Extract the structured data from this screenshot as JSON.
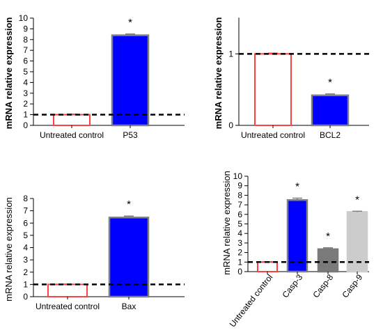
{
  "colors": {
    "control_edge": "#ff4040",
    "control_fill": "#ffffff",
    "blue": "#0000ff",
    "blue_edge": "#808080",
    "dark_gray": "#7a7a7a",
    "light_gray": "#cccccc",
    "error_bar": "#808080"
  },
  "chart_data": [
    {
      "type": "bar",
      "ylabel": "mRNA relative expression",
      "ylabel_bold": true,
      "categories": [
        "Untreated control",
        "P53"
      ],
      "values": [
        1.0,
        8.4
      ],
      "errors": [
        0.05,
        0.12
      ],
      "significance": [
        "",
        "*"
      ],
      "bar_colors": [
        "control",
        "blue"
      ],
      "yticks": [
        0,
        1,
        2,
        3,
        4,
        5,
        6,
        7,
        8,
        9,
        10
      ],
      "ylim": [
        0,
        10
      ],
      "reference_line": 1,
      "rotate_categories": false
    },
    {
      "type": "bar",
      "ylabel": "mRNA relative expression",
      "ylabel_bold": true,
      "categories": [
        "Untreated control",
        "BCL2"
      ],
      "values": [
        1.0,
        0.42
      ],
      "errors": [
        0.01,
        0.02
      ],
      "significance": [
        "",
        "*"
      ],
      "bar_colors": [
        "control",
        "blue"
      ],
      "yticks": [
        0,
        1
      ],
      "ylim": [
        0,
        1.5
      ],
      "reference_line": 1,
      "rotate_categories": false
    },
    {
      "type": "bar",
      "ylabel": "mRNA relative expression",
      "ylabel_bold": false,
      "categories": [
        "Untreated control",
        "Bax"
      ],
      "values": [
        1.0,
        6.45
      ],
      "errors": [
        0.03,
        0.12
      ],
      "significance": [
        "",
        "*"
      ],
      "bar_colors": [
        "control",
        "blue"
      ],
      "yticks": [
        0,
        1,
        2,
        3,
        4,
        5,
        6,
        7,
        8
      ],
      "ylim": [
        0,
        8
      ],
      "reference_line": 1,
      "rotate_categories": false
    },
    {
      "type": "bar",
      "ylabel": "mRNA relative expression",
      "ylabel_bold": false,
      "categories": [
        "Untreated control",
        "Casp-3",
        "Casp-8",
        "Casp-9"
      ],
      "values": [
        1.0,
        7.5,
        2.35,
        6.25
      ],
      "errors": [
        0.04,
        0.2,
        0.15,
        0.08
      ],
      "significance": [
        "",
        "*",
        "*",
        "*"
      ],
      "bar_colors": [
        "control",
        "blue",
        "dark_gray",
        "light_gray"
      ],
      "yticks": [
        0,
        1,
        2,
        3,
        4,
        5,
        6,
        7,
        8,
        9,
        10
      ],
      "ylim": [
        0,
        10
      ],
      "reference_line": 1,
      "rotate_categories": true
    }
  ]
}
